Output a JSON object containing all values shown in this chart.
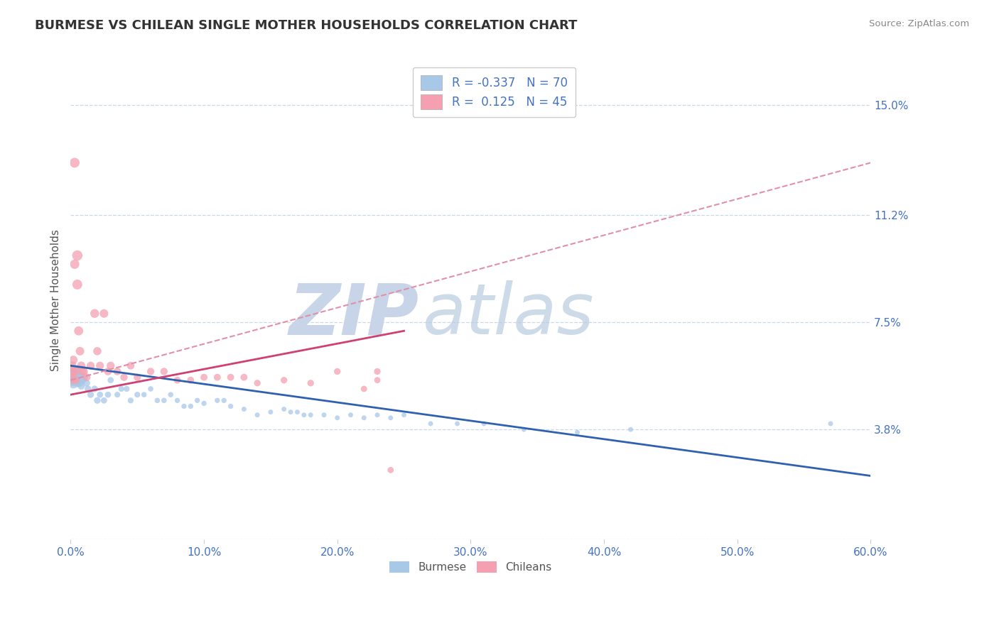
{
  "title": "BURMESE VS CHILEAN SINGLE MOTHER HOUSEHOLDS CORRELATION CHART",
  "source": "Source: ZipAtlas.com",
  "ylabel": "Single Mother Households",
  "xlim": [
    0.0,
    0.6
  ],
  "ylim": [
    0.0,
    0.165
  ],
  "ytick_vals": [
    0.0,
    0.038,
    0.075,
    0.112,
    0.15
  ],
  "ytick_labels": [
    "",
    "3.8%",
    "7.5%",
    "11.2%",
    "15.0%"
  ],
  "xtick_vals": [
    0.0,
    0.1,
    0.2,
    0.3,
    0.4,
    0.5,
    0.6
  ],
  "xtick_labels": [
    "0.0%",
    "10.0%",
    "20.0%",
    "30.0%",
    "40.0%",
    "50.0%",
    "60.0%"
  ],
  "burmese_color": "#a8c8e8",
  "chilean_color": "#f4a0b0",
  "trend_burmese_color": "#3060b0",
  "trend_chilean_color": "#d04070",
  "trend_chilean_dashed_color": "#e090a8",
  "legend_r_burmese": "-0.337",
  "legend_n_burmese": "70",
  "legend_r_chilean": "0.125",
  "legend_n_chilean": "45",
  "burmese_x": [
    0.001,
    0.001,
    0.001,
    0.002,
    0.002,
    0.002,
    0.003,
    0.003,
    0.004,
    0.004,
    0.005,
    0.005,
    0.005,
    0.006,
    0.006,
    0.007,
    0.007,
    0.008,
    0.008,
    0.009,
    0.01,
    0.012,
    0.013,
    0.015,
    0.018,
    0.02,
    0.022,
    0.025,
    0.028,
    0.03,
    0.035,
    0.038,
    0.042,
    0.045,
    0.05,
    0.055,
    0.06,
    0.065,
    0.07,
    0.075,
    0.08,
    0.085,
    0.09,
    0.095,
    0.1,
    0.11,
    0.115,
    0.12,
    0.13,
    0.14,
    0.15,
    0.16,
    0.165,
    0.17,
    0.175,
    0.18,
    0.19,
    0.2,
    0.21,
    0.22,
    0.23,
    0.24,
    0.25,
    0.27,
    0.29,
    0.31,
    0.34,
    0.38,
    0.42,
    0.57
  ],
  "burmese_y": [
    0.058,
    0.056,
    0.055,
    0.058,
    0.055,
    0.054,
    0.057,
    0.056,
    0.058,
    0.055,
    0.058,
    0.056,
    0.054,
    0.057,
    0.055,
    0.056,
    0.054,
    0.055,
    0.053,
    0.055,
    0.056,
    0.054,
    0.052,
    0.05,
    0.052,
    0.048,
    0.05,
    0.048,
    0.05,
    0.055,
    0.05,
    0.052,
    0.052,
    0.048,
    0.05,
    0.05,
    0.052,
    0.048,
    0.048,
    0.05,
    0.048,
    0.046,
    0.046,
    0.048,
    0.047,
    0.048,
    0.048,
    0.046,
    0.045,
    0.043,
    0.044,
    0.045,
    0.044,
    0.044,
    0.043,
    0.043,
    0.043,
    0.042,
    0.043,
    0.042,
    0.043,
    0.042,
    0.043,
    0.04,
    0.04,
    0.04,
    0.038,
    0.037,
    0.038,
    0.04
  ],
  "burmese_sizes": [
    180,
    160,
    140,
    160,
    140,
    120,
    100,
    90,
    100,
    90,
    80,
    80,
    70,
    70,
    65,
    65,
    60,
    60,
    55,
    55,
    55,
    50,
    45,
    45,
    45,
    45,
    40,
    40,
    40,
    40,
    35,
    35,
    35,
    35,
    35,
    30,
    30,
    30,
    30,
    30,
    28,
    28,
    28,
    28,
    28,
    28,
    28,
    28,
    25,
    25,
    25,
    25,
    25,
    25,
    25,
    25,
    25,
    25,
    25,
    25,
    25,
    25,
    25,
    25,
    25,
    25,
    25,
    25,
    25,
    25
  ],
  "chilean_x": [
    0.001,
    0.001,
    0.001,
    0.002,
    0.002,
    0.002,
    0.003,
    0.003,
    0.004,
    0.004,
    0.005,
    0.005,
    0.006,
    0.007,
    0.008,
    0.009,
    0.01,
    0.012,
    0.015,
    0.018,
    0.02,
    0.022,
    0.025,
    0.028,
    0.03,
    0.035,
    0.04,
    0.045,
    0.05,
    0.06,
    0.07,
    0.08,
    0.09,
    0.1,
    0.11,
    0.12,
    0.13,
    0.14,
    0.16,
    0.18,
    0.2,
    0.22,
    0.23,
    0.23,
    0.24
  ],
  "chilean_y": [
    0.06,
    0.058,
    0.056,
    0.062,
    0.058,
    0.055,
    0.13,
    0.095,
    0.058,
    0.055,
    0.098,
    0.088,
    0.072,
    0.065,
    0.06,
    0.058,
    0.058,
    0.056,
    0.06,
    0.078,
    0.065,
    0.06,
    0.078,
    0.058,
    0.06,
    0.058,
    0.056,
    0.06,
    0.056,
    0.058,
    0.058,
    0.055,
    0.055,
    0.056,
    0.056,
    0.056,
    0.056,
    0.054,
    0.055,
    0.054,
    0.058,
    0.052,
    0.058,
    0.055,
    0.024
  ],
  "chilean_sizes": [
    80,
    75,
    70,
    75,
    70,
    65,
    100,
    90,
    70,
    65,
    110,
    100,
    85,
    75,
    70,
    65,
    65,
    60,
    65,
    80,
    70,
    65,
    75,
    60,
    65,
    60,
    55,
    60,
    55,
    55,
    55,
    50,
    50,
    50,
    50,
    50,
    50,
    45,
    45,
    45,
    45,
    40,
    45,
    40,
    40
  ],
  "burmese_trend_x0": 0.0,
  "burmese_trend_y0": 0.06,
  "burmese_trend_x1": 0.6,
  "burmese_trend_y1": 0.022,
  "chilean_trend_solid_x0": 0.0,
  "chilean_trend_solid_y0": 0.05,
  "chilean_trend_solid_x1": 0.25,
  "chilean_trend_solid_y1": 0.072,
  "chilean_trend_dashed_x0": 0.0,
  "chilean_trend_dashed_y0": 0.055,
  "chilean_trend_dashed_x1": 0.6,
  "chilean_trend_dashed_y1": 0.13,
  "watermark_zip": "ZIP",
  "watermark_atlas": "atlas",
  "watermark_color": "#ccdcf0",
  "grid_color": "#c8d8e8",
  "tick_color": "#4472c4",
  "title_color": "#333333"
}
